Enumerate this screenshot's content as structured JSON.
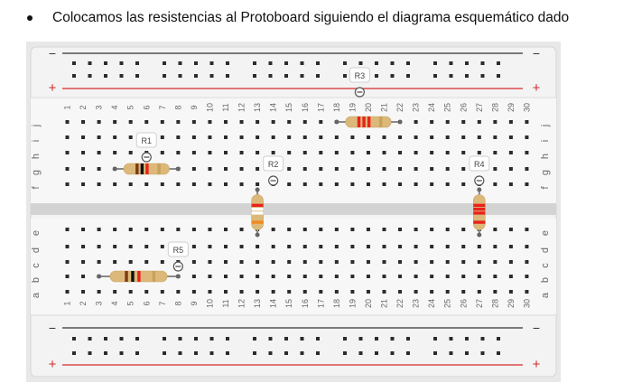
{
  "instruction": {
    "text": "Colocamos las resistencias al Protoboard siguiendo el diagrama esquemático dado"
  },
  "rail_labels": {
    "minus": "−",
    "plus": "+"
  },
  "row_labels_top": [
    "j",
    "i",
    "h",
    "g",
    "f"
  ],
  "row_labels_bottom": [
    "e",
    "d",
    "c",
    "b",
    "a"
  ],
  "columns": [
    "1",
    "2",
    "3",
    "4",
    "5",
    "6",
    "7",
    "8",
    "9",
    "10",
    "11",
    "12",
    "13",
    "14",
    "15",
    "16",
    "17",
    "18",
    "19",
    "20",
    "21",
    "22",
    "23",
    "24",
    "25",
    "26",
    "27",
    "28",
    "29",
    "30"
  ],
  "colors": {
    "rail_red": "#d42b2b",
    "rail_black": "#333333",
    "resistor_body": "#dcb97a",
    "hole": "#2b2b2b"
  },
  "resistors": [
    {
      "label": "R1",
      "orientation": "horizontal",
      "row": "g",
      "col_from": 4,
      "col_to": 8,
      "label_col": 6,
      "label_row": "h",
      "bands": [
        "#7a3a12",
        "#111111",
        "#e8231c",
        "#c8a25a"
      ]
    },
    {
      "label": "R2",
      "orientation": "vertical",
      "col": 13,
      "row_from": "f",
      "row_to": "e",
      "label_col": 14,
      "label_row": "g",
      "bands": [
        "#e8231c",
        "#ffffff",
        "#ffffff",
        "#f08a20"
      ]
    },
    {
      "label": "R3",
      "orientation": "horizontal",
      "row": "j",
      "col_from": 18,
      "col_to": 22,
      "label_col": 19,
      "label_row": "rail",
      "bands": [
        "#e8231c",
        "#e8231c",
        "#e8231c",
        "#c8a25a"
      ]
    },
    {
      "label": "R4",
      "orientation": "vertical",
      "col": 27,
      "row_from": "f",
      "row_to": "e",
      "label_col": 27,
      "label_row": "g",
      "bands": [
        "#e8231c",
        "#e8231c",
        "#e8231c",
        "#e8231c"
      ]
    },
    {
      "label": "R5",
      "orientation": "horizontal",
      "row": "b",
      "col_from": 3,
      "col_to": 8,
      "label_col": 8,
      "label_row": "c",
      "bands": [
        "#7a3a12",
        "#111111",
        "#e8231c",
        "#c8a25a"
      ]
    }
  ]
}
